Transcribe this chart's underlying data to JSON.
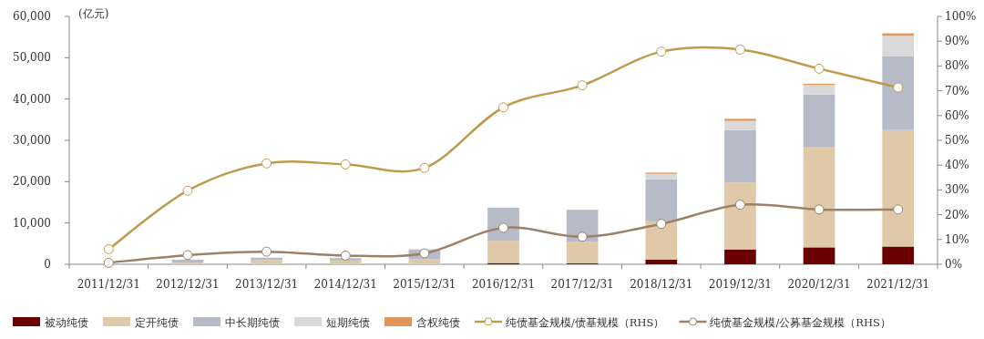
{
  "chart_data": {
    "type": "bar",
    "stacked": true,
    "ylabel": "(亿元)",
    "categories": [
      "2011/12/31",
      "2012/12/31",
      "2013/12/31",
      "2014/12/31",
      "2015/12/31",
      "2016/12/31",
      "2017/12/31",
      "2018/12/31",
      "2019/12/31",
      "2020/12/31",
      "2021/12/31"
    ],
    "series": [
      {
        "name": "被动纯债",
        "color": "#6b0000",
        "values": [
          0,
          0,
          0,
          0,
          null,
          300,
          200,
          1100,
          3600,
          4100,
          4300
        ]
      },
      {
        "name": "定开纯债",
        "color": "#e0c9a8",
        "values": [
          0,
          400,
          1000,
          900,
          1200,
          5400,
          5200,
          9300,
          16200,
          24200,
          28200
        ]
      },
      {
        "name": "中长期纯债",
        "color": "#b7bbc8",
        "values": [
          0,
          700,
          600,
          600,
          2400,
          8000,
          7800,
          10200,
          12700,
          12800,
          17900
        ]
      },
      {
        "name": "短期纯债",
        "color": "#d9d9d9",
        "values": [
          0,
          0,
          null,
          null,
          0,
          null,
          null,
          1300,
          2200,
          2300,
          4900
        ]
      },
      {
        "name": "含权纯债",
        "color": "#e0965a",
        "values": [
          0,
          0,
          0,
          0,
          0,
          0,
          0,
          300,
          500,
          300,
          600
        ]
      },
      {
        "name": "纯债基金规模/债基规模（RHS）",
        "type": "line",
        "axis": "y2",
        "color": "#c09a4e",
        "values": [
          6.1,
          29.7,
          40.7,
          40.3,
          38.9,
          63.3,
          72.2,
          85.8,
          86.6,
          78.9,
          71.3
        ]
      },
      {
        "name": "纯债基金规模/公募基金规模（RHS）",
        "type": "line",
        "axis": "y2",
        "color": "#9c8068",
        "values": [
          0.6,
          3.7,
          5.1,
          3.5,
          4.4,
          14.7,
          11.1,
          16.3,
          24.0,
          22.1,
          22.1
        ]
      }
    ],
    "ylim": [
      0,
      60000
    ],
    "yticks": [
      0,
      {
        "value": 10000,
        "label": "10,000"
      },
      {
        "value": 20000,
        "label": "20,000"
      },
      {
        "value": 30000,
        "label": "30,000"
      },
      {
        "value": 40000,
        "label": "40,000"
      },
      {
        "value": 50000,
        "label": "50,000"
      },
      {
        "value": 60000,
        "label": "60,000"
      }
    ],
    "y2lim": [
      0,
      100
    ],
    "y2ticks": [
      {
        "value": 0,
        "label": "0%"
      },
      {
        "value": 10,
        "label": "10%"
      },
      {
        "value": 20,
        "label": "20%"
      },
      {
        "value": 30,
        "label": "30%"
      },
      {
        "value": 40,
        "label": "40%"
      },
      {
        "value": 50,
        "label": "50%"
      },
      {
        "value": 60,
        "label": "60%"
      },
      {
        "value": 70,
        "label": "70%"
      },
      {
        "value": 80,
        "label": "80%"
      },
      {
        "value": 90,
        "label": "90%"
      },
      {
        "value": 100,
        "label": "100%"
      }
    ],
    "marker": "circle",
    "legend": "bottom",
    "grid": false
  }
}
